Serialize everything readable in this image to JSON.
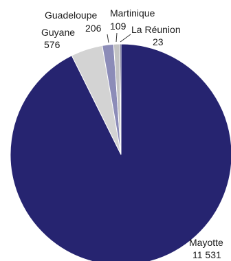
{
  "chart_data": {
    "type": "pie",
    "slices": [
      {
        "label": "Mayotte",
        "value_text": "11 531",
        "value": 11531,
        "color": "#262470"
      },
      {
        "label": "Guyane",
        "value_text": "576",
        "value": 576,
        "color": "#d3d3d3"
      },
      {
        "label": "Guadeloupe",
        "value_text": "206",
        "value": 206,
        "color": "#8c8cb8"
      },
      {
        "label": "Martinique",
        "value_text": "109",
        "value": 109,
        "color": "#c3c3c3"
      },
      {
        "label": "La Réunion",
        "value_text": "23",
        "value": 23,
        "color": "#1e1c52"
      }
    ]
  }
}
